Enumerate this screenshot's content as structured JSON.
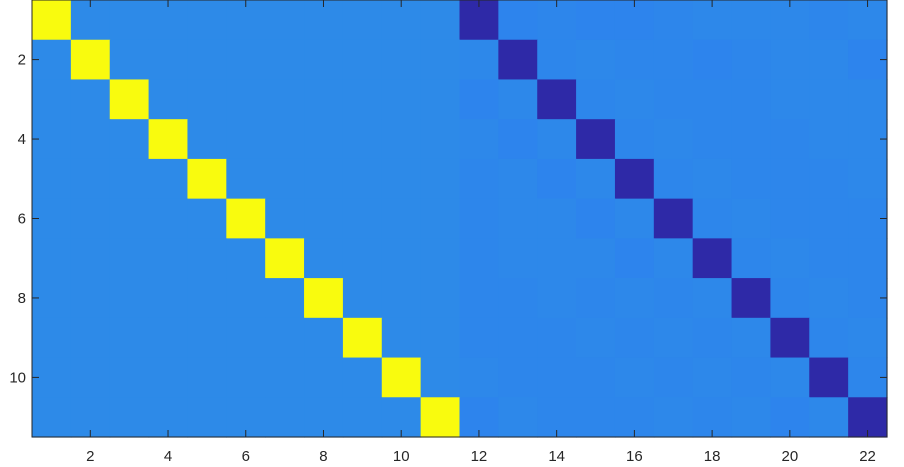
{
  "chart_data": {
    "type": "heatmap",
    "title": "",
    "xlabel": "",
    "ylabel": "",
    "rows": 11,
    "cols": 22,
    "xlim": [
      0.5,
      22.5
    ],
    "ylim": [
      0.5,
      11.5
    ],
    "y_direction": "reverse",
    "colormap": "parula",
    "clim": [
      -1,
      1
    ],
    "x_ticks": [
      2,
      4,
      6,
      8,
      10,
      12,
      14,
      16,
      18,
      20,
      22
    ],
    "x_tick_labels": [
      "2",
      "4",
      "6",
      "8",
      "10",
      "12",
      "14",
      "16",
      "18",
      "20",
      "22"
    ],
    "y_ticks": [
      2,
      4,
      6,
      8,
      10
    ],
    "y_tick_labels": [
      "2",
      "4",
      "6",
      "8",
      "10"
    ],
    "grid": false,
    "legend": "none",
    "values": [
      [
        1,
        0,
        0,
        0,
        0,
        0,
        0,
        0,
        0,
        0,
        0,
        -0.95,
        -0.15,
        -0.1,
        -0.15,
        -0.15,
        -0.1,
        -0.05,
        -0.05,
        -0.05,
        -0.1,
        -0.05
      ],
      [
        0,
        1,
        0,
        0,
        0,
        0,
        0,
        0,
        0,
        0,
        0,
        -0.05,
        -0.95,
        -0.1,
        -0.05,
        -0.1,
        -0.1,
        -0.15,
        -0.1,
        -0.05,
        -0.05,
        -0.15
      ],
      [
        0,
        0,
        1,
        0,
        0,
        0,
        0,
        0,
        0,
        0,
        0,
        -0.15,
        -0.05,
        -0.95,
        -0.1,
        -0.05,
        -0.1,
        -0.1,
        -0.1,
        -0.05,
        -0.05,
        -0.05
      ],
      [
        0,
        0,
        0,
        1,
        0,
        0,
        0,
        0,
        0,
        0,
        0,
        -0.05,
        -0.15,
        -0.05,
        -0.95,
        -0.1,
        -0.05,
        -0.1,
        -0.1,
        -0.1,
        -0.05,
        -0.05
      ],
      [
        0,
        0,
        0,
        0,
        1,
        0,
        0,
        0,
        0,
        0,
        0,
        -0.1,
        -0.05,
        -0.15,
        -0.05,
        -0.95,
        -0.1,
        -0.05,
        -0.1,
        -0.1,
        -0.1,
        -0.05
      ],
      [
        0,
        0,
        0,
        0,
        0,
        1,
        0,
        0,
        0,
        0,
        0,
        -0.1,
        -0.05,
        -0.05,
        -0.15,
        -0.05,
        -0.95,
        -0.1,
        -0.05,
        -0.1,
        -0.1,
        -0.1
      ],
      [
        0,
        0,
        0,
        0,
        0,
        0,
        1,
        0,
        0,
        0,
        0,
        -0.1,
        -0.05,
        -0.05,
        -0.05,
        -0.15,
        -0.05,
        -0.95,
        -0.1,
        -0.05,
        -0.1,
        -0.1
      ],
      [
        0,
        0,
        0,
        0,
        0,
        0,
        0,
        1,
        0,
        0,
        0,
        -0.1,
        -0.1,
        -0.05,
        -0.1,
        -0.05,
        -0.1,
        -0.05,
        -0.95,
        -0.1,
        -0.05,
        -0.1
      ],
      [
        0,
        0,
        0,
        0,
        0,
        0,
        0,
        0,
        1,
        0,
        0,
        -0.1,
        -0.1,
        -0.1,
        -0.05,
        -0.1,
        -0.05,
        -0.1,
        -0.05,
        -0.95,
        -0.1,
        -0.05
      ],
      [
        0,
        0,
        0,
        0,
        0,
        0,
        0,
        0,
        0,
        1,
        0,
        -0.05,
        -0.1,
        -0.1,
        -0.1,
        -0.05,
        -0.1,
        -0.05,
        -0.1,
        -0.05,
        -0.95,
        -0.1
      ],
      [
        0,
        0,
        0,
        0,
        0,
        0,
        0,
        0,
        0,
        0,
        1,
        -0.15,
        -0.05,
        -0.1,
        -0.1,
        -0.1,
        -0.05,
        -0.1,
        -0.05,
        -0.15,
        -0.05,
        -0.95
      ]
    ]
  }
}
